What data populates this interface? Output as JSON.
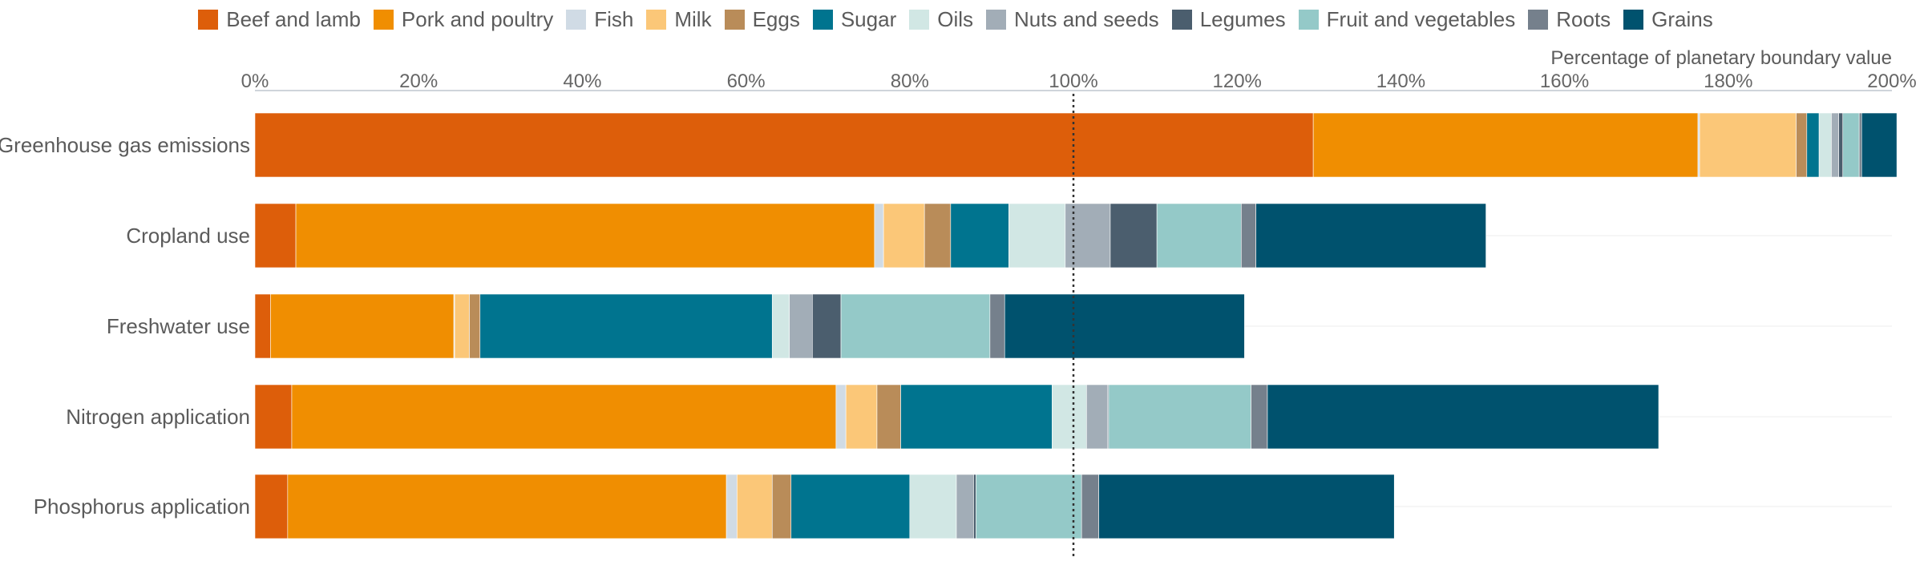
{
  "chart_data": {
    "type": "bar",
    "orientation": "horizontal",
    "stacked": true,
    "xlabel": "Percentage of planetary boundary value",
    "xlim": [
      0,
      200
    ],
    "xticks": [
      "0%",
      "20%",
      "40%",
      "60%",
      "80%",
      "100%",
      "120%",
      "140%",
      "160%",
      "180%",
      "200%"
    ],
    "reference_line": {
      "x": 100,
      "style": "dotted"
    },
    "legend_position": "top",
    "categories": [
      "Greenhouse gas emissions",
      "Cropland use",
      "Freshwater use",
      "Nitrogen application",
      "Phosphorus application"
    ],
    "series": [
      {
        "name": "Beef and lamb",
        "color": "#dd5e0a",
        "values": [
          129.3,
          5.0,
          1.9,
          4.5,
          4.0
        ]
      },
      {
        "name": "Pork and poultry",
        "color": "#f08e01",
        "values": [
          47.0,
          70.7,
          22.4,
          66.5,
          53.6
        ]
      },
      {
        "name": "Fish",
        "color": "#d0dbe5",
        "values": [
          0.2,
          1.1,
          0.1,
          1.2,
          1.3
        ]
      },
      {
        "name": "Milk",
        "color": "#fbc778",
        "values": [
          11.8,
          5.0,
          1.8,
          3.8,
          4.3
        ]
      },
      {
        "name": "Eggs",
        "color": "#b98c59",
        "values": [
          1.3,
          3.2,
          1.3,
          2.9,
          2.3
        ]
      },
      {
        "name": "Sugar",
        "color": "#00748f",
        "values": [
          1.5,
          7.1,
          35.7,
          18.5,
          14.5
        ]
      },
      {
        "name": "Oils",
        "color": "#d1e7e4",
        "values": [
          1.5,
          6.9,
          2.1,
          4.2,
          5.7
        ]
      },
      {
        "name": "Nuts and seeds",
        "color": "#a2adb7",
        "values": [
          0.9,
          5.5,
          2.8,
          2.6,
          2.1
        ]
      },
      {
        "name": "Legumes",
        "color": "#4b5e6e",
        "values": [
          0.5,
          5.7,
          3.5,
          0.1,
          0.3
        ]
      },
      {
        "name": "Fruit and vegetables",
        "color": "#94c9c8",
        "values": [
          2.0,
          10.3,
          18.2,
          17.4,
          12.9
        ]
      },
      {
        "name": "Roots",
        "color": "#75808c",
        "values": [
          0.3,
          1.8,
          1.8,
          2.0,
          2.1
        ]
      },
      {
        "name": "Grains",
        "color": "#00526e",
        "values": [
          4.3,
          28.1,
          29.3,
          47.8,
          36.1
        ]
      }
    ]
  }
}
